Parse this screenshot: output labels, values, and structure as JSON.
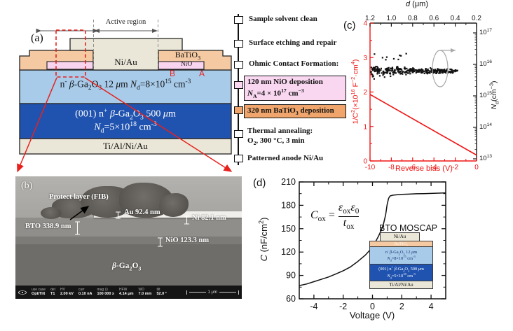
{
  "colors": {
    "red_annotation": "#e8211d",
    "axis_red": "#f01515",
    "metal_beige": "#eae7d8",
    "bto_peach": "#f5c9a2",
    "bto_box_orange": "#efa56b",
    "nio_pink": "#f9d4ee",
    "nio_box_pink": "#f9d7f1",
    "epi_light_blue": "#a8cbea",
    "substrate_dark_blue": "#2053af",
    "scatter_black": "#111111"
  },
  "panel_a": {
    "label": "(a)",
    "active_region_label": "Active region",
    "anode_label": "Ni/Au",
    "bto_label": "BaTiO<sub>3</sub>",
    "nio_label": "NiO",
    "point_b": "B",
    "point_a": "A",
    "epi_label": "n<sup>-</sup> <i>β</i>-Ga<sub>2</sub>O<sub>3</sub> 12 <i>μ</i>m <i>N</i><sub>d</sub>=8×10<sup>15</sup> cm<sup>-3</sup>",
    "substrate_label_1": "(001) n<sup>+</sup> <i>β</i>-Ga<sub>2</sub>O<sub>3</sub> 500 <i>μ</i>m",
    "substrate_label_2": "<i>N</i><sub>d</sub>=5×10<sup>18</sup> cm<sup>-3</sup>",
    "cathode_label": "Ti/Al/Ni/Au"
  },
  "process_flow": {
    "steps": [
      {
        "label": "Sample solvent clean"
      },
      {
        "label": "Surface etching and repair"
      },
      {
        "label": "Ohmic Contact Formation:"
      },
      {
        "line1": "120 nm NiO deposition",
        "line2": "<i>N</i><sub>A</sub>=4 × 10<sup>17</sup> cm<sup>−3</sup>"
      },
      {
        "label_html": "320 nm BaTiO<sub>3</sub> deposition"
      },
      {
        "line1": "Thermal annealing:",
        "line2": "O<sub>2</sub>, 300 °C, 3 min"
      },
      {
        "label": "Patterned anode Ni/Au"
      }
    ]
  },
  "panel_b": {
    "label": "(b)",
    "annotations": {
      "protect": "Protect layer (FIB)",
      "au": "Au 92.4 nm",
      "ni": "Ni 82.1 nm",
      "bto": "BTO 338.9 nm",
      "nio": "NiO 123.3 nm",
      "substrate": "<i>β</i>-Ga<sub>2</sub>O<sub>3</sub>"
    },
    "metadata_bar": {
      "fields": [
        {
          "k": "use case",
          "v": "OptiTilt"
        },
        {
          "k": "det",
          "v": "T1"
        },
        {
          "k": "HV",
          "v": "2.00 kV"
        },
        {
          "k": "curr",
          "v": "0.10 nA"
        },
        {
          "k": "mag ⊡",
          "v": "100 000 x"
        },
        {
          "k": "HFW",
          "v": "4.14 μm"
        },
        {
          "k": "WD",
          "v": "7.0 mm"
        },
        {
          "k": "tilt",
          "v": "52.0 °"
        }
      ],
      "scale_bar": "1 μm"
    }
  },
  "panel_c": {
    "label": "(c)",
    "top_axis_label_html": "<i>d</i> (μm)",
    "left_axis_label_html": "1/C<sup>2</sup>(×10<sup>16</sup> F<sup>−2</sup>·cm<sup>4</sup>)",
    "right_axis_label_html": "<i>N</i><sub>d</sub>(cm<sup>−3</sup>)",
    "bottom_axis_label": "Reverse bias (V)"
  },
  "panel_d": {
    "label": "(d)",
    "moscap_label": "BTO MOSCAP",
    "equation": {
      "lhs_html": "<i>C</i><sub>ox</sub> =",
      "numerator_html": "<i>ε</i><sub>ox</sub><i>ε</i><sub>0</sub>",
      "denominator_html": "<i>t</i><sub>ox</sub>"
    },
    "inset": {
      "anode": "Ni/Au",
      "bto_html": "BaTiO<sub>3</sub>",
      "epi_1_html": "n<sup>-</sup> <i>β</i>-Ga<sub>2</sub>O<sub>3</sub> 12 <i>μ</i>m",
      "epi_2_html": "<i>N</i><sub>d</sub>=8×10<sup>15</sup> cm<sup>-3</sup>",
      "sub_1_html": "(001) n<sup>+</sup> <i>β</i>-Ga<sub>2</sub>O<sub>3</sub> 500 <i>μ</i>m",
      "sub_2_html": "<i>N</i><sub>d</sub>=5×10<sup>18</sup> cm<sup>-3</sup>",
      "cathode": "Ti/Al/Ni/Au"
    }
  },
  "chart_data": [
    {
      "id": "panel_c",
      "type": "scatter",
      "top_axis": {
        "label": "d (μm)",
        "ticks": [
          "1.2",
          "1.0",
          "0.8",
          "0.6",
          "0.4",
          "0.2"
        ]
      },
      "bottom_axis": {
        "label": "Reverse bias (V)",
        "range": [
          -10,
          0
        ],
        "ticks": [
          "-10",
          "-8",
          "-6",
          "-4",
          "-2",
          "0"
        ]
      },
      "left_axis": {
        "label": "1/C2 (x10^16 F^-2 cm^4)",
        "range": [
          0,
          4
        ],
        "ticks": [
          "0",
          "1",
          "2",
          "3",
          "4"
        ]
      },
      "right_axis": {
        "label": "Nd (cm^-3)",
        "scale": "log",
        "ticks_html": [
          "10<sup>13</sup>",
          "10<sup>14</sup>",
          "10<sup>15</sup>",
          "10<sup>16</sup>",
          "10<sup>17</sup>"
        ]
      },
      "line_series": {
        "name": "1/C2 vs reverse bias",
        "points": [
          [
            -10,
            1.93
          ],
          [
            0,
            0.17
          ]
        ]
      },
      "scatter_series": {
        "name": "Nd extraction",
        "bias_range": [
          -10,
          -1.8
        ],
        "nd_band_center_cm3": 7500000000000000.0,
        "n_points": 330,
        "note": "horizontal band just below 1e16, spread widens toward -10 V"
      }
    },
    {
      "id": "panel_d",
      "type": "line",
      "xlabel": "Voltage (V)",
      "ylabel": "C (nF/cm2)",
      "xlim": [
        -5,
        5
      ],
      "ylim": [
        60,
        210
      ],
      "xticks": [
        -4,
        -2,
        0,
        2,
        4
      ],
      "yticks": [
        60,
        90,
        120,
        150,
        180,
        210
      ],
      "xticks_minor": [
        -5,
        -3,
        -1,
        1,
        3,
        5
      ],
      "yticks_minor": [
        75,
        105,
        135,
        165,
        195
      ],
      "series": [
        {
          "name": "C-V curve",
          "points": [
            [
              -5,
              77
            ],
            [
              -4.5,
              79
            ],
            [
              -4,
              82
            ],
            [
              -3.5,
              85
            ],
            [
              -3,
              88
            ],
            [
              -2.5,
              92
            ],
            [
              -2,
              96
            ],
            [
              -1.5,
              101
            ],
            [
              -1,
              108
            ],
            [
              -0.5,
              116
            ],
            [
              -0.2,
              122
            ],
            [
              0,
              127
            ],
            [
              0.2,
              133
            ],
            [
              0.4,
              140
            ],
            [
              0.6,
              148
            ],
            [
              0.75,
              156
            ],
            [
              0.9,
              168
            ],
            [
              1,
              181
            ],
            [
              1.1,
              189
            ],
            [
              1.2,
              192
            ],
            [
              1.4,
              193
            ],
            [
              1.7,
              193.6
            ],
            [
              2,
              194
            ],
            [
              2.5,
              194.4
            ],
            [
              3,
              194.8
            ],
            [
              3.5,
              195
            ],
            [
              4,
              195.3
            ],
            [
              4.5,
              195.6
            ],
            [
              5,
              196
            ]
          ]
        }
      ]
    }
  ]
}
